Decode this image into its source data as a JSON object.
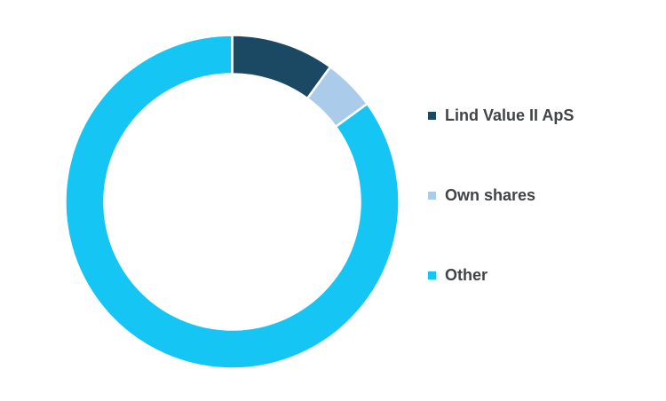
{
  "page": {
    "background_color": "#ffffff"
  },
  "chart_data": {
    "type": "pie",
    "variant": "donut",
    "title": "",
    "categories": [
      "Lind Value II ApS",
      "Own shares",
      "Other"
    ],
    "values": [
      10,
      5,
      85
    ],
    "unit": "%",
    "colors": [
      "#1b4963",
      "#aacbe9",
      "#15c5f3"
    ],
    "start_angle_deg": 0,
    "direction": "clockwise",
    "inner_radius_ratio": 0.766,
    "segment_gap_color": "#ffffff",
    "segment_gap_width": 2.5,
    "grid": false,
    "legend": {
      "position": "right",
      "text_color": "#404447",
      "items": [
        {
          "label": "Lind Value II ApS",
          "color": "#1b4963"
        },
        {
          "label": "Own shares",
          "color": "#aacbe9"
        },
        {
          "label": "Other",
          "color": "#15c5f3"
        }
      ]
    }
  }
}
